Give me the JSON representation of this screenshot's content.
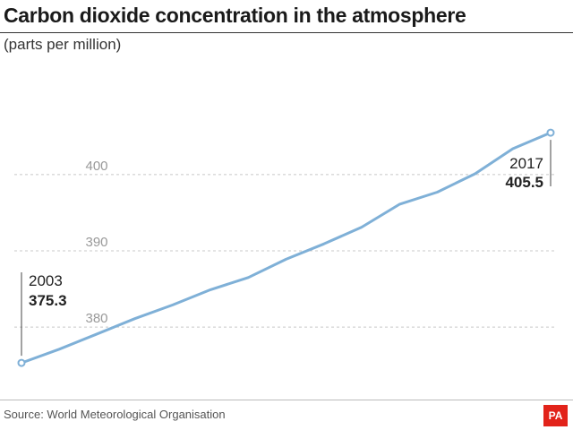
{
  "title": "Carbon dioxide concentration in the atmosphere",
  "subtitle": "(parts per million)",
  "source": "Source: World Meteorological Organisation",
  "logo_text": "PA",
  "colors": {
    "line": "#7fb0d7",
    "grid": "#c8c8c8",
    "tick_text": "#999999",
    "text": "#222222",
    "logo_bg": "#e2231a"
  },
  "chart_data": {
    "type": "line",
    "title": "Carbon dioxide concentration in the atmosphere",
    "subtitle": "(parts per million)",
    "xlabel": "",
    "ylabel": "",
    "x": [
      2003,
      2004,
      2005,
      2006,
      2007,
      2008,
      2009,
      2010,
      2011,
      2012,
      2013,
      2014,
      2015,
      2016,
      2017
    ],
    "series": [
      {
        "name": "CO2 (ppm)",
        "values": [
          375.3,
          377.1,
          379.1,
          381.1,
          382.9,
          384.9,
          386.5,
          388.9,
          390.9,
          393.1,
          396.1,
          397.7,
          400.1,
          403.4,
          405.5
        ]
      }
    ],
    "yticks": [
      380,
      390,
      400
    ],
    "ylim": [
      371.2,
      413.5
    ],
    "xlim": [
      2003,
      2017
    ],
    "grid": "horizontal dashed",
    "annotations": [
      {
        "year": "2003",
        "value": "375.3"
      },
      {
        "year": "2017",
        "value": "405.5"
      }
    ]
  }
}
